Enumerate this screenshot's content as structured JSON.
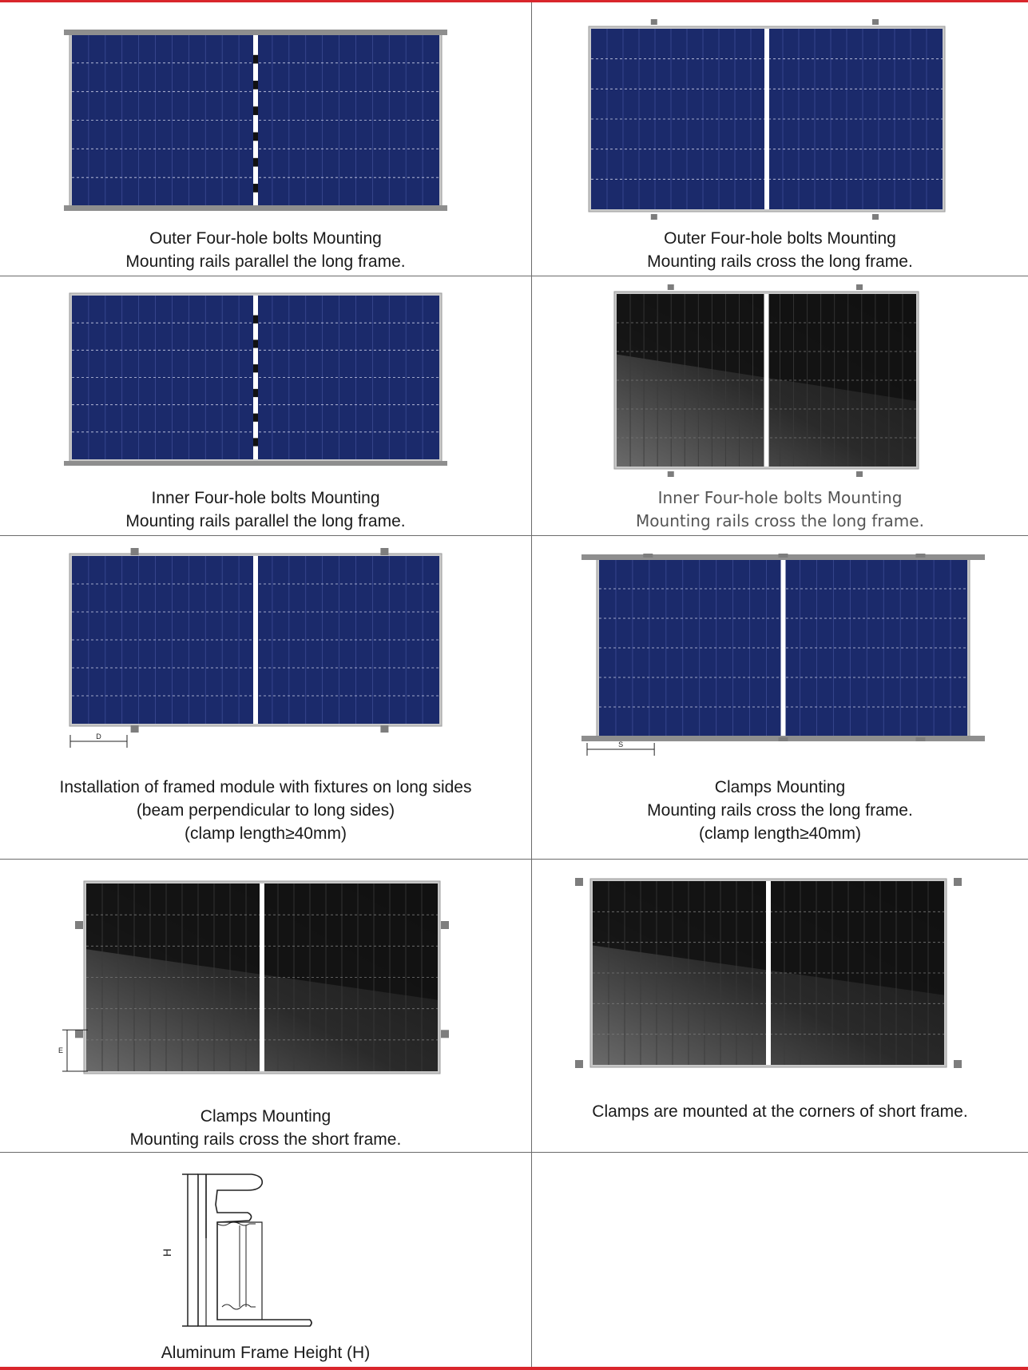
{
  "colors": {
    "accent_line": "#d9262c",
    "panel_blue": "#1b2a6b",
    "panel_black": "#141414",
    "rail_gray": "#8e8e8e",
    "divider": "#6b6b6b"
  },
  "cells": [
    {
      "figure": "blue-panel-rails-parallel",
      "caption": [
        "Outer Four-hole bolts Mounting",
        "Mounting rails parallel the long frame."
      ]
    },
    {
      "figure": "blue-panel-rails-cross",
      "caption": [
        "Outer Four-hole bolts Mounting",
        "Mounting rails cross the long frame."
      ]
    },
    {
      "figure": "blue-panel-rails-parallel-inner",
      "caption": [
        "Inner Four-hole bolts Mounting",
        "Mounting rails parallel the long frame."
      ]
    },
    {
      "figure": "black-panel-rails-cross",
      "caption": [
        "Inner Four-hole bolts Mounting",
        "Mounting rails cross the long frame."
      ]
    },
    {
      "figure": "blue-panel-long-side-clamps",
      "dimension_label": "D",
      "caption": [
        "Installation of framed module with fixtures on long sides",
        "(beam perpendicular to long sides)",
        "(clamp length≥40mm)"
      ]
    },
    {
      "figure": "blue-panel-clamps-rails-cross",
      "dimension_label": "S",
      "caption": [
        "Clamps Mounting",
        "Mounting rails cross the long frame.",
        "(clamp length≥40mm)"
      ]
    },
    {
      "figure": "black-panel-clamps-short-frame",
      "dimension_label": "E",
      "caption": [
        "Clamps Mounting",
        "Mounting rails cross the short frame."
      ]
    },
    {
      "figure": "black-panel-corner-clamps",
      "caption": [
        "Clamps are mounted at the corners of short frame."
      ]
    },
    {
      "figure": "aluminum-frame-profile",
      "dimension_label": "H",
      "caption": [
        "Aluminum Frame Height (H)"
      ]
    }
  ]
}
